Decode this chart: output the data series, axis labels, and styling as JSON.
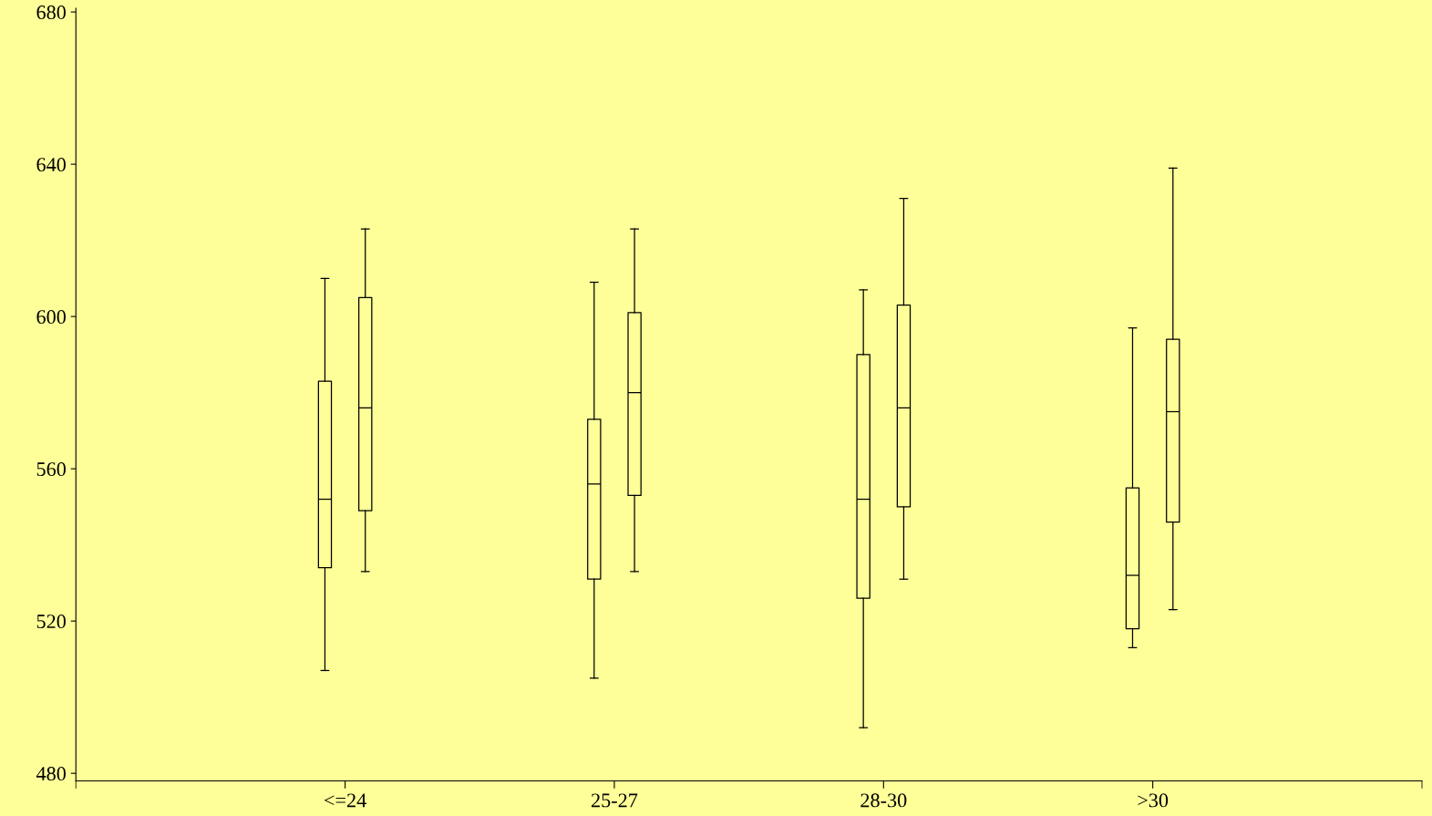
{
  "chart_data": {
    "type": "box",
    "categories": [
      "<=24",
      "25-27",
      "28-30",
      ">30"
    ],
    "series": [
      {
        "color": "#000000",
        "boxes": [
          {
            "low": 507,
            "q1": 534,
            "median": 552,
            "q3": 583,
            "high": 610
          },
          {
            "low": 505,
            "q1": 531,
            "median": 556,
            "q3": 573,
            "high": 609
          },
          {
            "low": 492,
            "q1": 526,
            "median": 552,
            "q3": 590,
            "high": 607
          },
          {
            "low": 513,
            "q1": 518,
            "median": 532,
            "q3": 555,
            "high": 597
          }
        ]
      },
      {
        "color": "#000000",
        "boxes": [
          {
            "low": 533,
            "q1": 549,
            "median": 576,
            "q3": 605,
            "high": 623
          },
          {
            "low": 533,
            "q1": 553,
            "median": 580,
            "q3": 601,
            "high": 623
          },
          {
            "low": 531,
            "q1": 550,
            "median": 576,
            "q3": 603,
            "high": 631
          },
          {
            "low": 523,
            "q1": 546,
            "median": 575,
            "q3": 594,
            "high": 639
          }
        ]
      }
    ],
    "ylim": [
      478,
      681
    ],
    "yticks": [
      480,
      520,
      560,
      600,
      640,
      680
    ],
    "grid": false,
    "legend": false
  }
}
